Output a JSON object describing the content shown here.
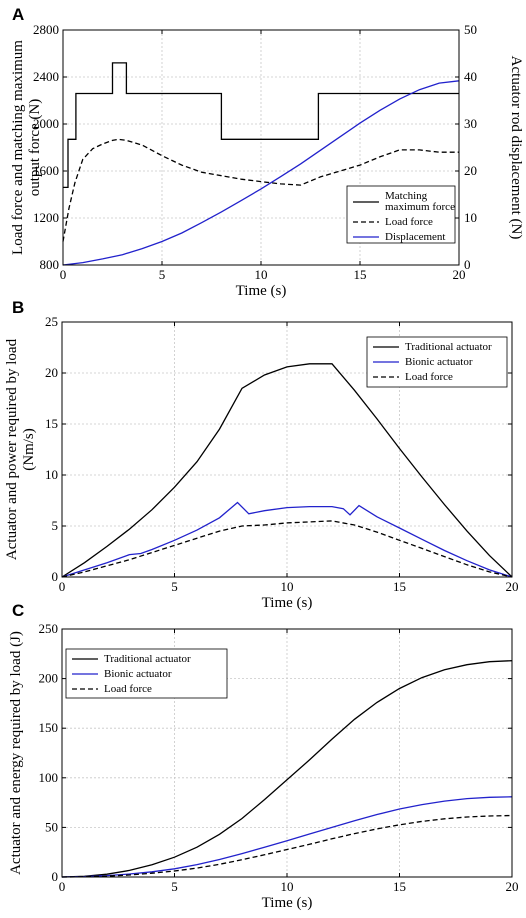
{
  "chart_data": [
    {
      "panel": "A",
      "type": "line",
      "xlabel": "Time (s)",
      "ylabel": "Load force and matching maximum output force (N)",
      "ylabel_lines": [
        "Load force and matching maximum",
        "output force (N)"
      ],
      "y2label": "Actuator rod displacement (N)",
      "xlim": [
        0,
        20
      ],
      "ylim": [
        800,
        2800
      ],
      "y2lim": [
        0,
        50
      ],
      "xticks": [
        0,
        5,
        10,
        15,
        20
      ],
      "yticks": [
        800,
        1200,
        1600,
        2000,
        2400,
        2800
      ],
      "y2ticks": [
        0,
        10,
        20,
        30,
        40,
        50
      ],
      "grid": true,
      "legend_position": "bottom-right",
      "legend": [
        {
          "label_lines": [
            "Matching",
            "maximum force"
          ],
          "color": "#000000",
          "dash": "solid"
        },
        {
          "label_lines": [
            "Load force"
          ],
          "color": "#000000",
          "dash": "dashed"
        },
        {
          "label_lines": [
            "Displacement"
          ],
          "color": "#2222cc",
          "dash": "solid"
        }
      ],
      "series": [
        {
          "name": "Matching maximum force",
          "axis": "left",
          "color": "#000000",
          "dash": "solid",
          "x": [
            0,
            0.25,
            0.25,
            0.65,
            0.65,
            1,
            1,
            2.5,
            2.5,
            3.2,
            3.2,
            8,
            8,
            12.9,
            12.9,
            20
          ],
          "y": [
            1460,
            1460,
            1870,
            1870,
            2260,
            2260,
            2260,
            2260,
            2520,
            2520,
            2260,
            2260,
            1870,
            1870,
            2260,
            2260
          ]
        },
        {
          "name": "Load force",
          "axis": "left",
          "color": "#000000",
          "dash": "dashed",
          "x": [
            0,
            0.3,
            0.6,
            1,
            1.5,
            2,
            2.5,
            2.8,
            3.2,
            4,
            5,
            6,
            7,
            8,
            9,
            10,
            11,
            12,
            13,
            14,
            15,
            16,
            17,
            18,
            19,
            20
          ],
          "y": [
            1000,
            1280,
            1500,
            1700,
            1790,
            1830,
            1860,
            1870,
            1860,
            1820,
            1730,
            1650,
            1590,
            1560,
            1530,
            1510,
            1490,
            1480,
            1550,
            1600,
            1650,
            1720,
            1780,
            1780,
            1760,
            1760
          ]
        },
        {
          "name": "Displacement",
          "axis": "right",
          "color": "#2222cc",
          "dash": "solid",
          "x": [
            0,
            1,
            2,
            3,
            4,
            5,
            6,
            7,
            8,
            9,
            10,
            11,
            12,
            13,
            14,
            15,
            16,
            17,
            18,
            19,
            20
          ],
          "y": [
            0,
            0.5,
            1.3,
            2.2,
            3.5,
            5,
            6.8,
            9,
            11.3,
            13.7,
            16.2,
            18.8,
            21.5,
            24.4,
            27.3,
            30.2,
            32.9,
            35.3,
            37.3,
            38.7,
            39.2
          ]
        }
      ]
    },
    {
      "panel": "B",
      "type": "line",
      "xlabel": "Time (s)",
      "ylabel": "Actuator and power required by load (Nm/s)",
      "ylabel_lines": [
        "Actuator and power required by load",
        "(Nm/s)"
      ],
      "xlim": [
        0,
        20
      ],
      "ylim": [
        0,
        25
      ],
      "xticks": [
        0,
        5,
        10,
        15,
        20
      ],
      "yticks": [
        0,
        5,
        10,
        15,
        20,
        25
      ],
      "grid": true,
      "legend_position": "top-right",
      "legend": [
        {
          "label_lines": [
            "Traditional actuator"
          ],
          "color": "#000000",
          "dash": "solid"
        },
        {
          "label_lines": [
            "Bionic actuator"
          ],
          "color": "#2222cc",
          "dash": "solid"
        },
        {
          "label_lines": [
            "Load force"
          ],
          "color": "#000000",
          "dash": "dashed"
        }
      ],
      "series": [
        {
          "name": "Traditional actuator",
          "color": "#000000",
          "dash": "solid",
          "x": [
            0,
            1,
            2,
            3,
            4,
            5,
            6,
            7,
            8,
            9,
            10,
            11,
            12,
            13,
            14,
            15,
            16,
            17,
            18,
            19,
            20
          ],
          "y": [
            0,
            1.4,
            3,
            4.7,
            6.6,
            8.8,
            11.3,
            14.5,
            18.5,
            19.8,
            20.6,
            20.9,
            20.9,
            18.3,
            15.5,
            12.6,
            9.8,
            7.1,
            4.5,
            2.1,
            0
          ]
        },
        {
          "name": "Bionic actuator",
          "color": "#2222cc",
          "dash": "solid",
          "x": [
            0,
            1,
            2,
            3,
            3.5,
            4,
            5,
            6,
            7,
            7.8,
            8.3,
            9,
            10,
            11,
            12,
            12.5,
            12.8,
            13.2,
            14,
            15,
            16,
            17,
            18,
            19,
            20
          ],
          "y": [
            0,
            0.7,
            1.4,
            2.2,
            2.3,
            2.7,
            3.6,
            4.6,
            5.8,
            7.3,
            6.2,
            6.5,
            6.8,
            6.9,
            6.9,
            6.7,
            6.1,
            7.0,
            5.9,
            4.8,
            3.7,
            2.6,
            1.6,
            0.7,
            0
          ]
        },
        {
          "name": "Load force",
          "color": "#000000",
          "dash": "dashed",
          "x": [
            0,
            1,
            2,
            3,
            4,
            5,
            6,
            7,
            8,
            9,
            10,
            11,
            12,
            13,
            14,
            15,
            16,
            17,
            18,
            19,
            20
          ],
          "y": [
            0,
            0.5,
            1.1,
            1.7,
            2.4,
            3.1,
            3.8,
            4.5,
            5,
            5.1,
            5.3,
            5.4,
            5.5,
            5.1,
            4.4,
            3.6,
            2.8,
            2.0,
            1.2,
            0.5,
            0
          ]
        }
      ]
    },
    {
      "panel": "C",
      "type": "line",
      "xlabel": "Time (s)",
      "ylabel": "Actuator and energy required by load (J)",
      "ylabel_lines": [
        "Actuator and energy required by load (J)"
      ],
      "xlim": [
        0,
        20
      ],
      "ylim": [
        0,
        250
      ],
      "xticks": [
        0,
        5,
        10,
        15,
        20
      ],
      "yticks": [
        0,
        50,
        100,
        150,
        200,
        250
      ],
      "grid": true,
      "legend_position": "top-left",
      "legend": [
        {
          "label_lines": [
            "Traditional actuator"
          ],
          "color": "#000000",
          "dash": "solid"
        },
        {
          "label_lines": [
            "Bionic actuator"
          ],
          "color": "#2222cc",
          "dash": "solid"
        },
        {
          "label_lines": [
            "Load force"
          ],
          "color": "#000000",
          "dash": "dashed"
        }
      ],
      "series": [
        {
          "name": "Traditional actuator",
          "color": "#000000",
          "dash": "solid",
          "x": [
            0,
            1,
            2,
            3,
            4,
            5,
            6,
            7,
            8,
            9,
            10,
            11,
            12,
            13,
            14,
            15,
            16,
            17,
            18,
            19,
            20
          ],
          "y": [
            0,
            0.7,
            2.8,
            6.7,
            12.4,
            20,
            30,
            43,
            59,
            78,
            98,
            118,
            139,
            159,
            176,
            190,
            201,
            209,
            214,
            217,
            218
          ]
        },
        {
          "name": "Bionic actuator",
          "color": "#2222cc",
          "dash": "solid",
          "x": [
            0,
            1,
            2,
            3,
            4,
            5,
            6,
            7,
            8,
            9,
            10,
            11,
            12,
            13,
            14,
            15,
            16,
            17,
            18,
            19,
            20
          ],
          "y": [
            0,
            0.4,
            1.4,
            3,
            5.2,
            8.3,
            12.5,
            17.6,
            23.6,
            30,
            36.5,
            43.3,
            50,
            56.8,
            63,
            68.5,
            73,
            76.5,
            79,
            80.3,
            80.8
          ]
        },
        {
          "name": "Load force",
          "color": "#000000",
          "dash": "dashed",
          "x": [
            0,
            1,
            2,
            3,
            4,
            5,
            6,
            7,
            8,
            9,
            10,
            11,
            12,
            13,
            14,
            15,
            16,
            17,
            18,
            19,
            20
          ],
          "y": [
            0,
            0.2,
            0.9,
            2,
            3.8,
            6,
            9,
            12.8,
            17.4,
            22.4,
            27.7,
            33,
            38.5,
            43.7,
            48.5,
            52.6,
            56,
            58.7,
            60.5,
            61.5,
            62
          ]
        }
      ]
    }
  ]
}
